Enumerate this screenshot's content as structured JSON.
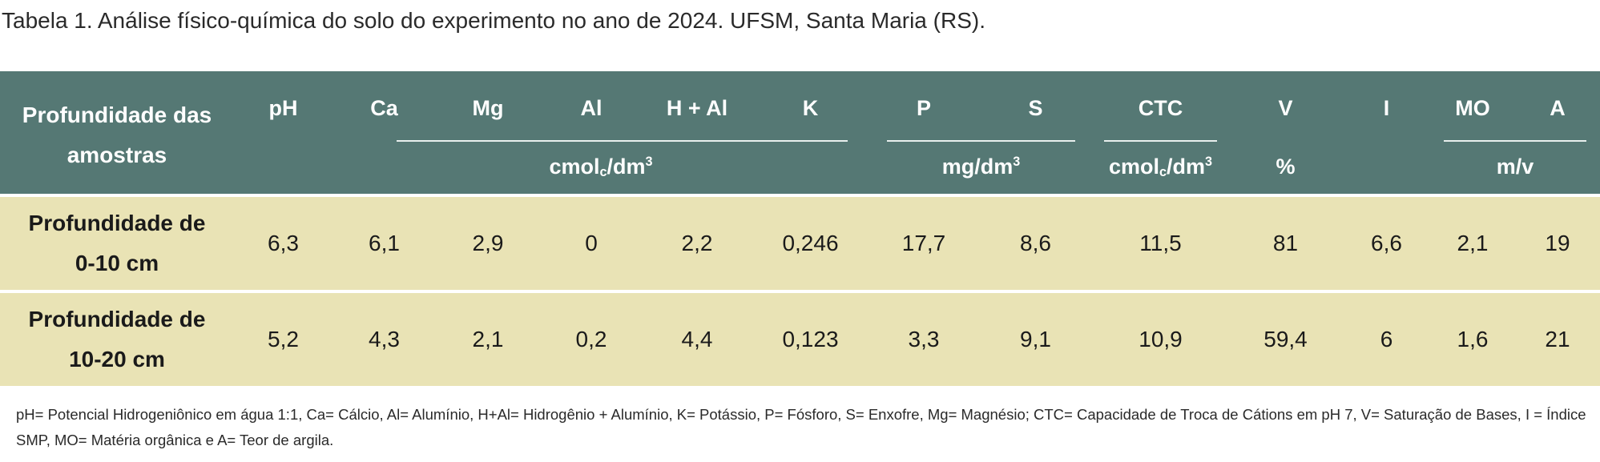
{
  "title": "Tabela 1. Análise físico-química do solo do experimento no ano de 2024. UFSM, Santa Maria (RS).",
  "table": {
    "header": {
      "depth": "Profundidade das amostras",
      "columns": [
        "pH",
        "Ca",
        "Mg",
        "Al",
        "H + Al",
        "K",
        "P",
        "S",
        "CTC",
        "V",
        "I",
        "MO",
        "A"
      ],
      "units": [
        {
          "text": "cmol",
          "sub": "c",
          "tail": "/dm",
          "sup": "3"
        },
        {
          "text": "mg/dm",
          "sup": "3"
        },
        {
          "text": "cmol",
          "sub": "c",
          "tail": "/dm",
          "sup": "3"
        },
        {
          "text": "%"
        },
        {
          "text": "m/v"
        }
      ]
    },
    "rows": [
      {
        "depth": "Profundidade de 0-10 cm",
        "values": [
          "6,3",
          "6,1",
          "2,9",
          "0",
          "2,2",
          "0,246",
          "17,7",
          "8,6",
          "11,5",
          "81",
          "6,6",
          "2,1",
          "19"
        ]
      },
      {
        "depth": "Profundidade de 10-20 cm",
        "values": [
          "5,2",
          "4,3",
          "2,1",
          "0,2",
          "4,4",
          "0,123",
          "3,3",
          "9,1",
          "10,9",
          "59,4",
          "6",
          "1,6",
          "21"
        ]
      }
    ]
  },
  "footnote": "pH= Potencial Hidrogeniônico em água 1:1, Ca= Cálcio, Al= Alumínio, H+Al= Hidrogênio + Alumínio, K= Potássio, P= Fósforo, S= Enxofre, Mg= Magnésio; CTC= Capacidade de Troca de Cátions em pH 7, V= Saturação de Bases, I = Índice SMP, MO= Matéria orgânica e A= Teor de argila."
}
